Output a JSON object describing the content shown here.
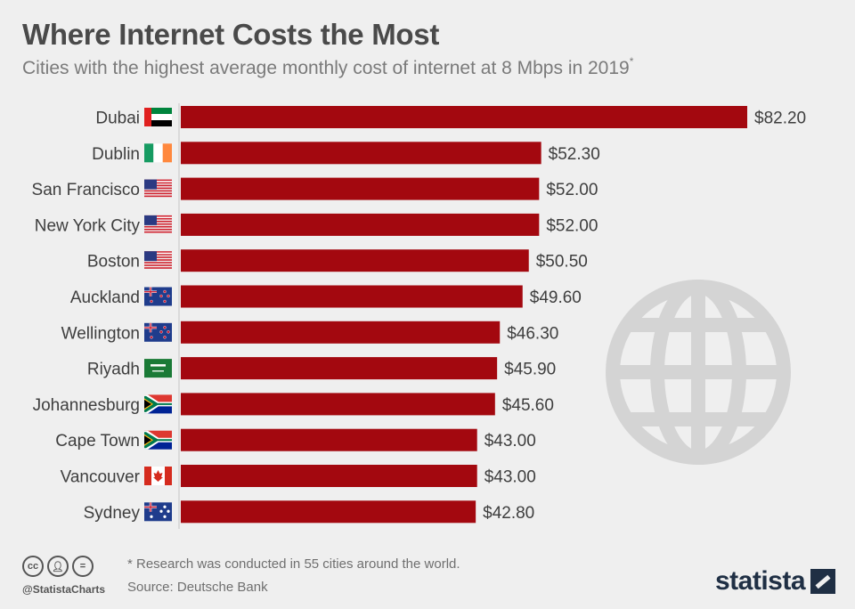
{
  "header": {
    "title": "Where Internet Costs the Most",
    "subtitle": "Cities with the highest average monthly cost of internet at 8 Mbps in 2019",
    "subtitle_mark": "*"
  },
  "chart_data": {
    "type": "bar",
    "orientation": "horizontal",
    "title": "Where Internet Costs the Most",
    "categories": [
      "Dubai",
      "Dublin",
      "San Francisco",
      "New York City",
      "Boston",
      "Auckland",
      "Wellington",
      "Riyadh",
      "Johannesburg",
      "Cape Town",
      "Vancouver",
      "Sydney"
    ],
    "values": [
      82.2,
      52.3,
      52.0,
      52.0,
      50.5,
      49.6,
      46.3,
      45.9,
      45.6,
      43.0,
      43.0,
      42.8
    ],
    "value_labels": [
      "$82.20",
      "$52.30",
      "$52.00",
      "$52.00",
      "$50.50",
      "$49.60",
      "$46.30",
      "$45.90",
      "$45.60",
      "$43.00",
      "$43.00",
      "$42.80"
    ],
    "flags": [
      "uae",
      "ireland",
      "usa",
      "usa",
      "usa",
      "new-zealand",
      "new-zealand",
      "saudi-arabia",
      "south-africa",
      "south-africa",
      "canada",
      "australia"
    ],
    "xlim": [
      0,
      82.2
    ],
    "xlabel": "",
    "ylabel": "",
    "bar_color": "#a3080f",
    "grid": false
  },
  "footer": {
    "note": "* Research was conducted in 55 cities around the world.",
    "source": "Source: Deutsche Bank",
    "handle": "@StatistaCharts",
    "brand": "statista"
  },
  "icons": [
    "creative-commons-icon",
    "attribution-icon",
    "no-derivatives-icon",
    "globe-icon",
    "statista-logo-icon"
  ]
}
